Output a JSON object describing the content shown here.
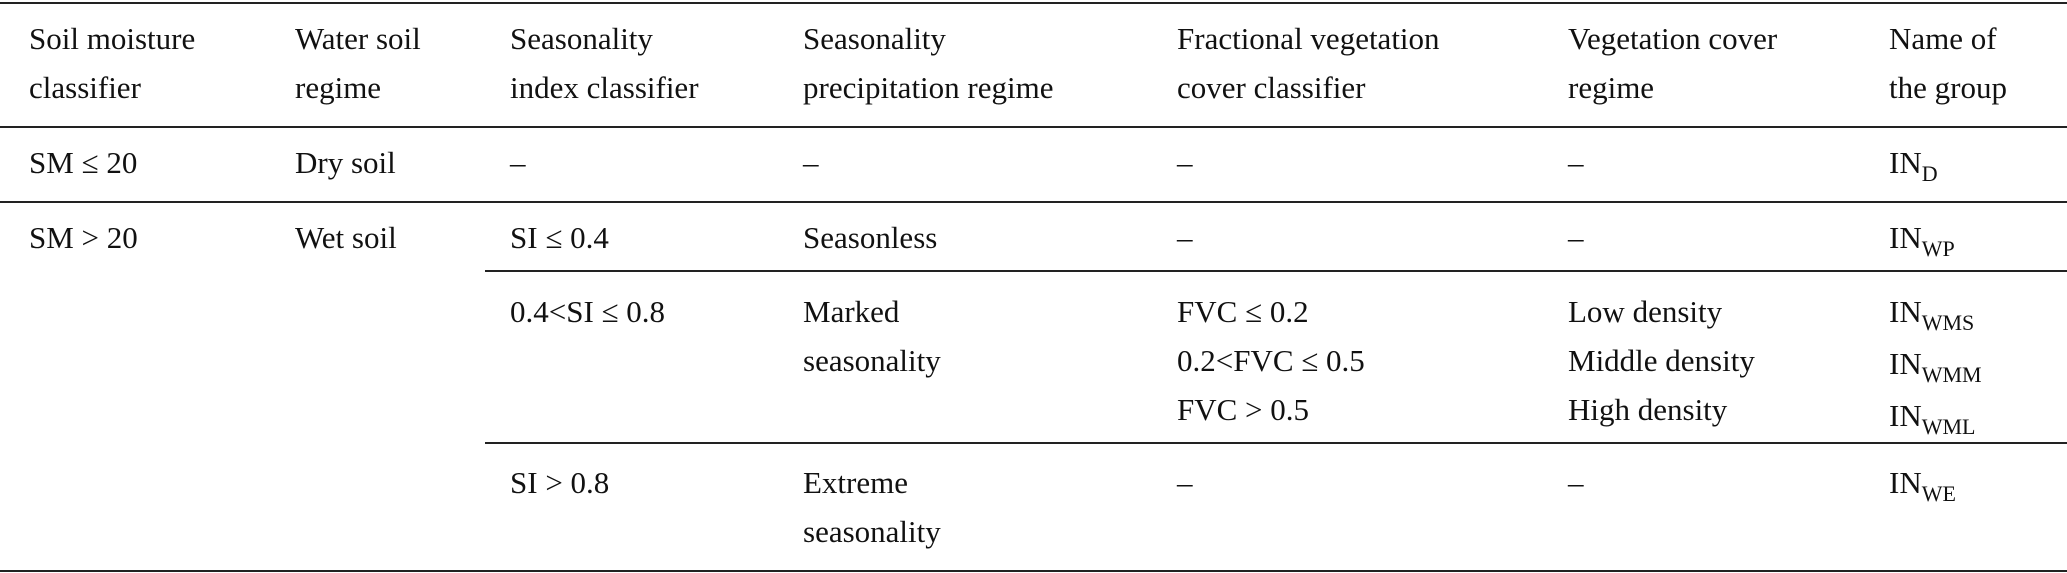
{
  "table": {
    "header": [
      [
        "Soil moisture",
        "classifier"
      ],
      [
        "Water soil",
        "regime"
      ],
      [
        "Seasonality",
        "index classifier"
      ],
      [
        "Seasonality",
        "precipitation regime"
      ],
      [
        "Fractional vegetation",
        "cover classifier"
      ],
      [
        "Vegetation cover",
        "regime"
      ],
      [
        "Name of",
        "the group"
      ]
    ],
    "rows": [
      {
        "sm": "SM ≤ 20",
        "water": "Dry soil",
        "si": "–",
        "precip": "–",
        "fvc": "–",
        "veg": "–",
        "group": {
          "base": "IN",
          "sub": "D"
        }
      },
      {
        "sm": "SM > 20",
        "water": "Wet soil",
        "si": "SI ≤ 0.4",
        "precip": "Seasonless",
        "fvc": "–",
        "veg": "–",
        "group": {
          "base": "IN",
          "sub": "WP"
        }
      },
      {
        "si": "0.4<SI ≤ 0.8",
        "precip": [
          "Marked",
          "seasonality"
        ],
        "fvc": [
          "FVC ≤ 0.2",
          "0.2<FVC ≤ 0.5",
          "FVC > 0.5"
        ],
        "veg": [
          "Low density",
          "Middle density",
          "High density"
        ],
        "group": [
          {
            "base": "IN",
            "sub": "WMS"
          },
          {
            "base": "IN",
            "sub": "WMM"
          },
          {
            "base": "IN",
            "sub": "WML"
          }
        ]
      },
      {
        "si": "SI > 0.8",
        "precip": [
          "Extreme",
          "seasonality"
        ],
        "fvc": "–",
        "veg": "–",
        "group": {
          "base": "IN",
          "sub": "WE"
        }
      }
    ]
  }
}
